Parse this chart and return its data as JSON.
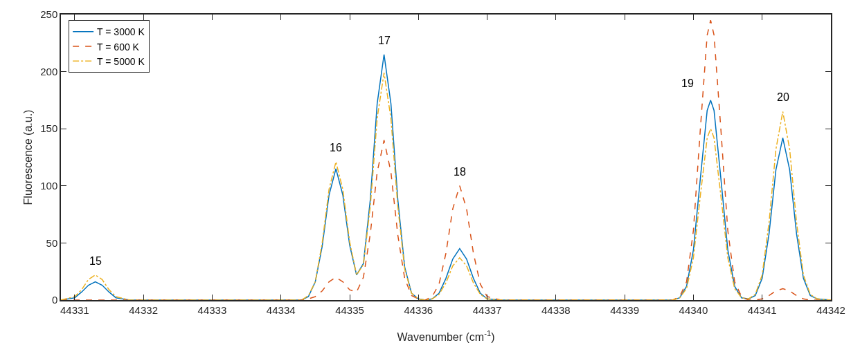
{
  "chart_data": {
    "type": "line",
    "xlabel": "Wavenumber (cm$^{-1}$)",
    "ylabel": "Fluorescence (a.u.)",
    "x": [
      44330.8,
      44331.0,
      44331.1,
      44331.2,
      44331.3,
      44331.4,
      44331.5,
      44331.6,
      44331.8,
      44334.3,
      44334.4,
      44334.5,
      44334.6,
      44334.7,
      44334.8,
      44334.9,
      44335.0,
      44335.1,
      44335.2,
      44335.3,
      44335.4,
      44335.5,
      44335.6,
      44335.7,
      44335.8,
      44335.9,
      44336.0,
      44336.1,
      44336.2,
      44336.3,
      44336.4,
      44336.5,
      44336.6,
      44336.7,
      44336.8,
      44336.9,
      44337.0,
      44337.2,
      44339.7,
      44339.8,
      44339.9,
      44340.0,
      44340.1,
      44340.2,
      44340.25,
      44340.3,
      44340.4,
      44340.5,
      44340.6,
      44340.7,
      44340.8,
      44340.9,
      44341.0,
      44341.1,
      44341.2,
      44341.3,
      44341.4,
      44341.5,
      44341.6,
      44341.7,
      44341.8,
      44342
    ],
    "series": [
      {
        "name": "T = 3000 K",
        "color": "#0072bd",
        "line_style": "solid",
        "values": [
          0,
          2,
          7,
          13,
          16,
          13,
          7,
          2,
          0,
          0,
          3,
          16,
          47,
          92,
          115,
          92,
          48,
          22,
          32,
          88,
          172,
          215,
          172,
          88,
          29,
          6,
          1,
          0,
          1,
          6,
          19,
          36,
          45,
          36,
          19,
          6,
          1,
          0,
          0,
          2,
          12,
          44,
          106,
          166,
          175,
          166,
          106,
          44,
          12,
          2,
          1,
          4,
          19,
          58,
          114,
          142,
          114,
          58,
          19,
          4,
          1,
          0
        ]
      },
      {
        "name": "T = 600 K",
        "color": "#d95319",
        "line_style": "dashed",
        "values": [
          0,
          0,
          0,
          0,
          0,
          0,
          0,
          0,
          0,
          0,
          1,
          3,
          8,
          16,
          20,
          16,
          9,
          7,
          20,
          58,
          112,
          140,
          112,
          57,
          19,
          4,
          1,
          0,
          3,
          14,
          41,
          80,
          100,
          80,
          41,
          14,
          3,
          0,
          0,
          3,
          16,
          61,
          149,
          232,
          245,
          232,
          149,
          61,
          16,
          3,
          0,
          0,
          1,
          4,
          8,
          10,
          8,
          4,
          1,
          0,
          0,
          0
        ]
      },
      {
        "name": "T = 5000 K",
        "color": "#edb120",
        "line_style": "dashdot",
        "values": [
          0,
          3,
          9,
          18,
          22,
          18,
          9,
          3,
          0,
          0,
          4,
          16,
          50,
          97,
          121,
          97,
          51,
          22,
          31,
          82,
          159,
          199,
          159,
          82,
          27,
          6,
          1,
          0,
          1,
          5,
          15,
          30,
          37,
          30,
          15,
          5,
          1,
          0,
          0,
          2,
          10,
          37,
          91,
          142,
          150,
          142,
          91,
          37,
          10,
          2,
          1,
          5,
          22,
          68,
          132,
          165,
          132,
          68,
          22,
          5,
          1,
          0
        ]
      }
    ],
    "xlim": [
      44330.8,
      44342
    ],
    "xticks": [
      44331,
      44332,
      44333,
      44334,
      44335,
      44336,
      44337,
      44338,
      44339,
      44340,
      44341,
      44342
    ],
    "ylim": [
      0,
      250
    ],
    "yticks": [
      0,
      50,
      100,
      150,
      200,
      250
    ],
    "grid": false,
    "legend": "top left",
    "marker": "none",
    "annotations": [
      {
        "text": "15",
        "x": 44331.3,
        "y": 22
      },
      {
        "text": "16",
        "x": 44334.8,
        "y": 121
      },
      {
        "text": "17",
        "x": 44335.5,
        "y": 215
      },
      {
        "text": "18",
        "x": 44336.6,
        "y": 100
      },
      {
        "text": "19",
        "x": 44340.25,
        "y": 175
      },
      {
        "text": "20",
        "x": 44341.3,
        "y": 165
      }
    ]
  }
}
